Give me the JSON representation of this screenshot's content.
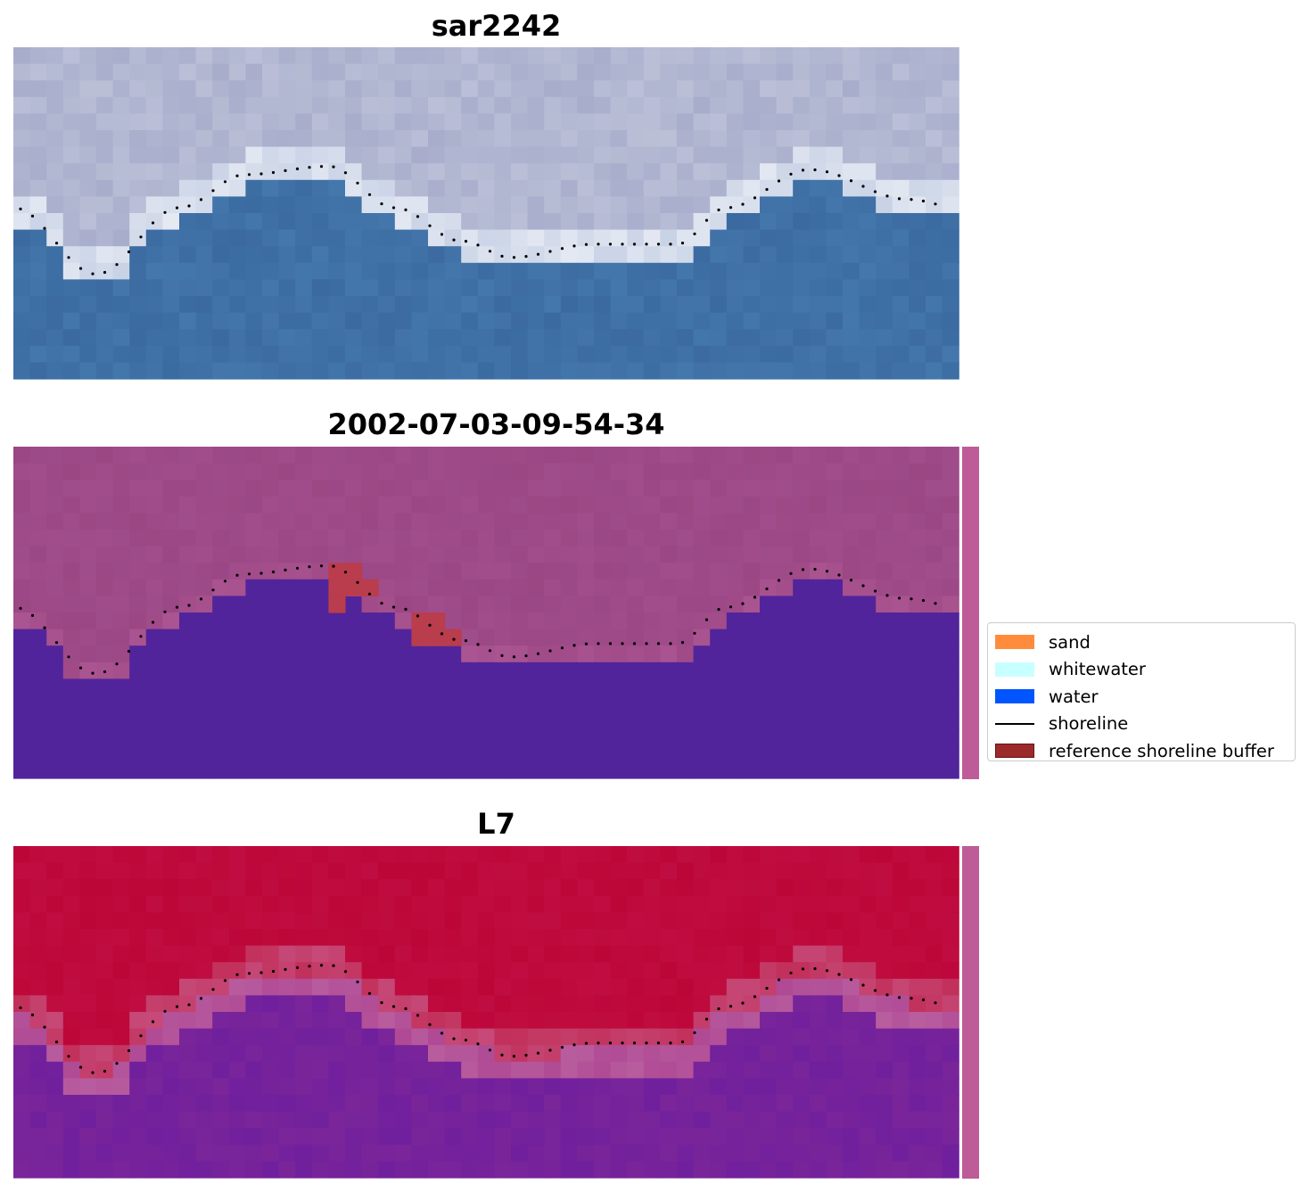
{
  "panels": [
    {
      "title": "sar2242",
      "kind": "rgb"
    },
    {
      "title": "2002-07-03-09-54-34",
      "kind": "classified"
    },
    {
      "title": "L7",
      "kind": "index"
    }
  ],
  "legend": {
    "items": [
      {
        "label": "sand",
        "color": "#ff8c3d",
        "kind": "patch"
      },
      {
        "label": "whitewater",
        "color": "#c8ffff",
        "kind": "patch"
      },
      {
        "label": "water",
        "color": "#0055ff",
        "kind": "patch"
      },
      {
        "label": "shoreline",
        "color": "#000000",
        "kind": "line"
      },
      {
        "label": "reference shoreline buffer",
        "color": "#9b2b2b",
        "kind": "patch"
      }
    ]
  },
  "colors": {
    "sky_land": "#a7adcb",
    "water_rgb": "#3a6aa0",
    "classified_land": "#9a4784",
    "classified_water": "#52249b",
    "classified_buffer": "#b93d4d",
    "index_land": "#bd0638",
    "index_water": "#7a2599",
    "buffer_strip": "#be5c97"
  }
}
